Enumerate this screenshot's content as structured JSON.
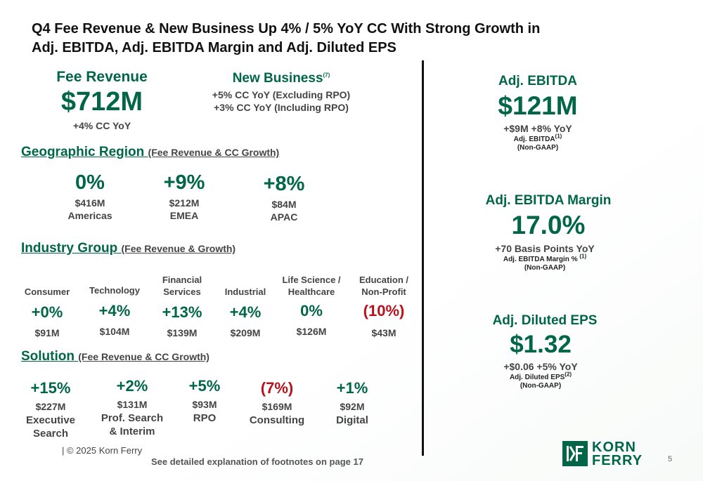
{
  "title_line1": "Q4 Fee Revenue & New Business Up 4% / 5% YoY CC With Strong Growth in",
  "title_line2": "Adj. EBITDA, Adj. EBITDA Margin and Adj. Diluted EPS",
  "fee_revenue": {
    "label": "Fee Revenue",
    "value": "$712M",
    "change": "+4% CC YoY"
  },
  "new_business": {
    "label": "New Business",
    "sup": "(7)",
    "line1": "+5% CC YoY (Excluding RPO)",
    "line2": "+3% CC YoY (Including RPO)"
  },
  "geo": {
    "heading": "Geographic Region",
    "sub": "(Fee Revenue & CC Growth)",
    "items": [
      {
        "pct": "0%",
        "amount": "$416M",
        "name": "Americas"
      },
      {
        "pct": "+9%",
        "amount": "$212M",
        "name": "EMEA"
      },
      {
        "pct": "+8%",
        "amount": "$84M",
        "name": "APAC"
      }
    ]
  },
  "industry": {
    "heading": "Industry Group",
    "sub": "(Fee Revenue & Growth)",
    "items": [
      {
        "l1": "Consumer",
        "l2": "",
        "pct": "+0%",
        "amount": "$91M"
      },
      {
        "l1": "Technology",
        "l2": "",
        "pct": "+4%",
        "amount": "$104M"
      },
      {
        "l1": "Financial",
        "l2": "Services",
        "pct": "+13%",
        "amount": "$139M"
      },
      {
        "l1": "Industrial",
        "l2": "",
        "pct": "+4%",
        "amount": "$209M"
      },
      {
        "l1": "Life Science /",
        "l2": "Healthcare",
        "pct": "0%",
        "amount": "$126M"
      },
      {
        "l1": "Education /",
        "l2": "Non-Profit",
        "pct": "(10%)",
        "amount": "$43M"
      }
    ]
  },
  "solution": {
    "heading": "Solution",
    "sub": "(Fee Revenue & CC Growth)",
    "items": [
      {
        "pct": "+15%",
        "amount": "$227M",
        "l1": "Executive",
        "l2": "Search"
      },
      {
        "pct": "+2%",
        "amount": "$131M",
        "l1": "Prof. Search",
        "l2": "& Interim"
      },
      {
        "pct": "+5%",
        "amount": "$93M",
        "l1": "RPO",
        "l2": ""
      },
      {
        "pct": "(7%)",
        "amount": "$169M",
        "l1": "Consulting",
        "l2": ""
      },
      {
        "pct": "+1%",
        "amount": "$92M",
        "l1": "Digital",
        "l2": ""
      }
    ]
  },
  "ebitda": {
    "label": "Adj. EBITDA",
    "value": "$121M",
    "change": "+$9M +8% YoY",
    "note1": "Adj. EBITDA",
    "note1_sup": "(1)",
    "note2": "(Non-GAAP)"
  },
  "margin": {
    "label": "Adj. EBITDA Margin",
    "value": "17.0%",
    "change": "+70 Basis Points YoY",
    "note1": "Adj. EBITDA Margin %",
    "note1_sup": "(1)",
    "note2": "(Non-GAAP)"
  },
  "eps": {
    "label": "Adj. Diluted EPS",
    "value": "$1.32",
    "change": "+$0.06 +5% YoY",
    "note1": "Adj. Diluted EPS",
    "note1_sup": "(2)",
    "note2": "(Non-GAAP)"
  },
  "copyright": "| © 2025 Korn Ferry",
  "footnote": "See detailed explanation of footnotes on page 17",
  "logo": {
    "line1": "KORN",
    "line2": "FERRY"
  },
  "page_number": "5",
  "colors": {
    "green": "#006647",
    "red": "#b5121b"
  }
}
